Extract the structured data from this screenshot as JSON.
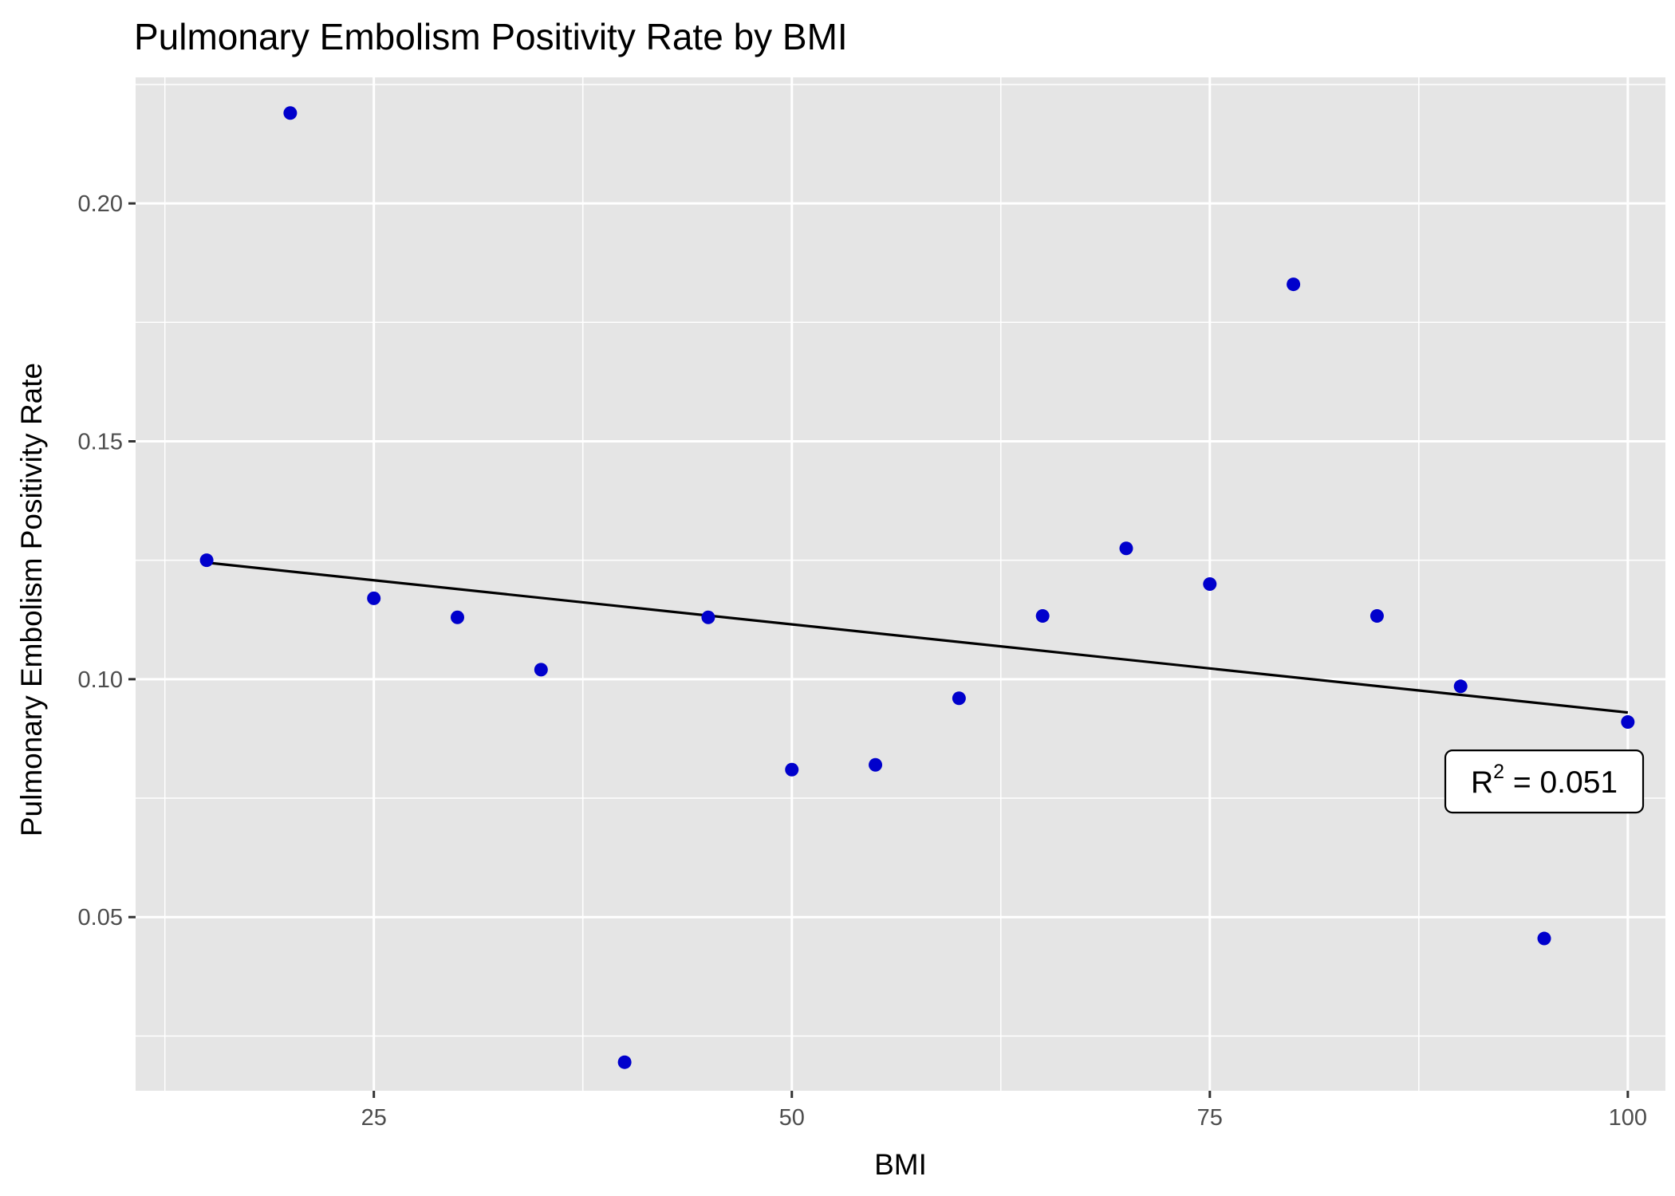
{
  "chart_data": {
    "type": "scatter",
    "title": "Pulmonary Embolism Positivity Rate by BMI",
    "xlabel": "BMI",
    "ylabel": "Pulmonary Embolism Positivity Rate",
    "xlim": [
      10.75,
      102.25
    ],
    "ylim": [
      0.0135,
      0.2265
    ],
    "x_ticks": [
      {
        "value": 25,
        "label": "25"
      },
      {
        "value": 50,
        "label": "50"
      },
      {
        "value": 75,
        "label": "75"
      },
      {
        "value": 100,
        "label": "100"
      }
    ],
    "x_minor_ticks": [
      12.5,
      37.5,
      62.5,
      87.5
    ],
    "y_ticks": [
      {
        "value": 0.05,
        "label": "0.05"
      },
      {
        "value": 0.1,
        "label": "0.10"
      },
      {
        "value": 0.15,
        "label": "0.15"
      },
      {
        "value": 0.2,
        "label": "0.20"
      }
    ],
    "y_minor_ticks": [
      0.025,
      0.075,
      0.125,
      0.175,
      0.225
    ],
    "grid": true,
    "panel_background": "#e5e5e5",
    "grid_color": "#ffffff",
    "point_color": "#0000cc",
    "line_color": "#000000",
    "series": [
      {
        "points": [
          {
            "x": 15,
            "y": 0.125
          },
          {
            "x": 20,
            "y": 0.219
          },
          {
            "x": 25,
            "y": 0.117
          },
          {
            "x": 30,
            "y": 0.113
          },
          {
            "x": 35,
            "y": 0.102
          },
          {
            "x": 40,
            "y": 0.0195
          },
          {
            "x": 45,
            "y": 0.113
          },
          {
            "x": 50,
            "y": 0.081
          },
          {
            "x": 55,
            "y": 0.082
          },
          {
            "x": 60,
            "y": 0.096
          },
          {
            "x": 65,
            "y": 0.1133
          },
          {
            "x": 70,
            "y": 0.1275
          },
          {
            "x": 75,
            "y": 0.12
          },
          {
            "x": 80,
            "y": 0.183
          },
          {
            "x": 85,
            "y": 0.1133
          },
          {
            "x": 90,
            "y": 0.0985
          },
          {
            "x": 95,
            "y": 0.0455
          },
          {
            "x": 100,
            "y": 0.091
          }
        ]
      }
    ],
    "trendline": {
      "x_start": 15,
      "y_start": 0.1245,
      "x_end": 100,
      "y_end": 0.093
    },
    "annotation": {
      "base": "R",
      "superscript": "2",
      "rest": " = 0.051",
      "x": 95,
      "y": 0.0785
    }
  }
}
